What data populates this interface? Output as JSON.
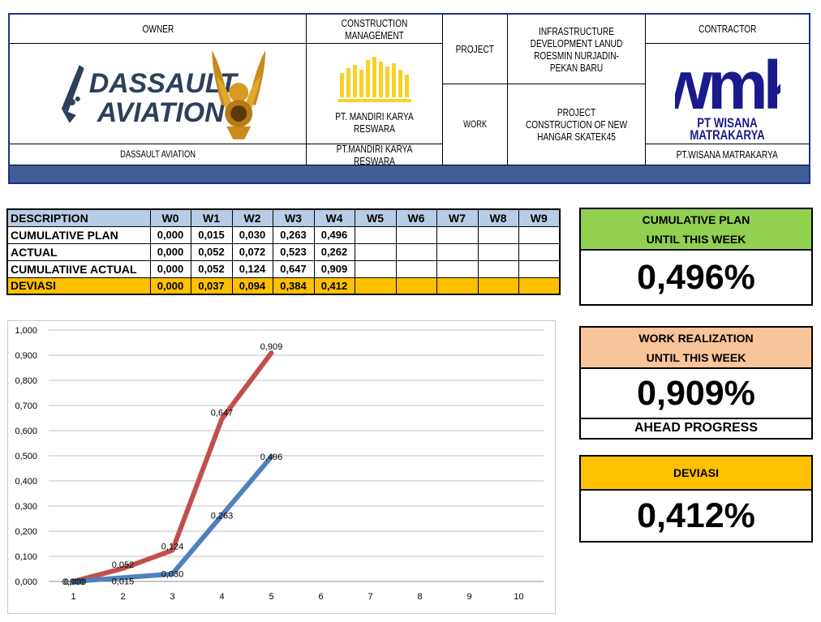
{
  "header": {
    "owner_label": "OWNER",
    "owner_logo_text_1": "DASSAULT",
    "owner_logo_text_2": "AVIATION",
    "owner_name": "DASSAULT AVIATION",
    "cm_label": "CONSTRUCTION MANAGEMENT",
    "cm_logo_caption": "PT. MANDIRI KARYA RESWARA",
    "cm_name": "PT.MANDIRI KARYA RESWARA",
    "project_label": "PROJECT",
    "project_value": "INFRASTRUCTURE DEVELOPMENT LANUD ROESMIN NURJADIN-PEKAN BARU",
    "work_label": "WORK",
    "work_value": "PROJECT CONSTRUCTION OF NEW HANGAR SKATEK45",
    "contractor_label": "CONTRACTOR",
    "contractor_logo_text": "wmk",
    "contractor_logo_caption": "PT WISANA MATRAKARYA",
    "contractor_name": "PT.WISANA MATRAKARYA",
    "band_color": "#3e5f96"
  },
  "table": {
    "columns": [
      "DESCRIPTION",
      "W0",
      "W1",
      "W2",
      "W3",
      "W4",
      "W5",
      "W6",
      "W7",
      "W8",
      "W9"
    ],
    "rows": [
      {
        "label": "CUMULATIVE PLAN",
        "values": [
          "0,000",
          "0,015",
          "0,030",
          "0,263",
          "0,496",
          "",
          "",
          "",
          "",
          ""
        ]
      },
      {
        "label": "ACTUAL",
        "values": [
          "0,000",
          "0,052",
          "0,072",
          "0,523",
          "0,262",
          "",
          "",
          "",
          "",
          ""
        ]
      },
      {
        "label": "CUMULATIIVE ACTUAL",
        "values": [
          "0,000",
          "0,052",
          "0,124",
          "0,647",
          "0,909",
          "",
          "",
          "",
          "",
          ""
        ]
      },
      {
        "label": "DEVIASI",
        "values": [
          "0,000",
          "0,037",
          "0,094",
          "0,384",
          "0,412",
          "",
          "",
          "",
          "",
          ""
        ]
      }
    ],
    "header_color": "#b8cce4",
    "deviasi_color": "#ffc000"
  },
  "kpi": {
    "plan": {
      "line1": "CUMULATIVE PLAN",
      "line2": "UNTIL THIS WEEK",
      "value": "0,496%",
      "color": "#92d050"
    },
    "realization": {
      "line1": "WORK REALIZATION",
      "line2": "UNTIL THIS WEEK",
      "value": "0,909%",
      "status": "AHEAD PROGRESS",
      "color": "#f8c49a"
    },
    "deviasi": {
      "line1": "DEVIASI",
      "value": "0,412%",
      "color": "#ffc000"
    }
  },
  "chart_data": {
    "type": "line",
    "x": [
      1,
      2,
      3,
      4,
      5,
      6,
      7,
      8,
      9,
      10
    ],
    "ylim": [
      0,
      1.0
    ],
    "yticks": [
      "0,000",
      "0,100",
      "0,200",
      "0,300",
      "0,400",
      "0,500",
      "0,600",
      "0,700",
      "0,800",
      "0,900",
      "1,000"
    ],
    "grid": true,
    "legend": "none",
    "series": [
      {
        "color": "#c0504d",
        "x": [
          1,
          2,
          3,
          4,
          5
        ],
        "values": [
          0.0,
          0.052,
          0.124,
          0.647,
          0.909
        ],
        "labels": [
          "0,000",
          "0,052",
          "0,124",
          "0,647",
          "0,909"
        ]
      },
      {
        "color": "#4f81bd",
        "x": [
          1,
          2,
          3,
          4,
          5
        ],
        "values": [
          0.0,
          0.015,
          0.03,
          0.263,
          0.496
        ],
        "labels": [
          "0,000",
          "0,015",
          "0,030",
          "0,263",
          "0,496"
        ]
      }
    ]
  }
}
